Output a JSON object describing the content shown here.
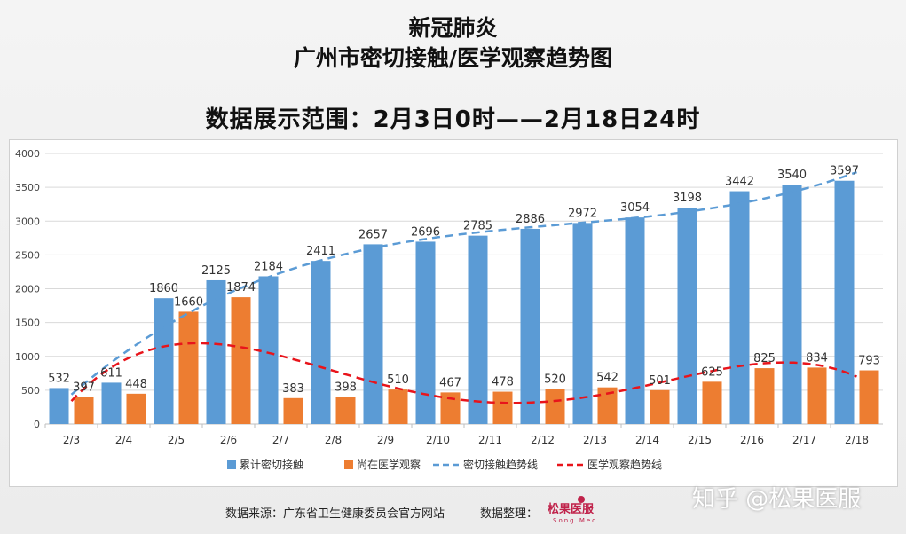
{
  "header": {
    "title_line1": "新冠肺炎",
    "title_line2": "广州市密切接触/医学观察趋势图",
    "subtitle": "数据展示范围：2月3日0时——2月18日24时"
  },
  "footer": {
    "source": "数据来源：广东省卫生健康委员会官方网站",
    "organizer": "数据整理：",
    "brand_name": "松果医服",
    "brand_sub": "Song Med",
    "watermark": "知乎 @松果医服"
  },
  "colors": {
    "contacts": "#5b9bd5",
    "observation": "#ed7d31",
    "contacts_trend": "#5b9bd5",
    "observation_trend": "#e8141b",
    "brand": "#c0234b"
  },
  "chart_data": {
    "type": "bar",
    "categories": [
      "2/3",
      "2/4",
      "2/5",
      "2/6",
      "2/7",
      "2/8",
      "2/9",
      "2/10",
      "2/11",
      "2/12",
      "2/13",
      "2/14",
      "2/15",
      "2/16",
      "2/17",
      "2/18"
    ],
    "series": [
      {
        "name": "累计密切接触",
        "values": [
          532,
          611,
          1860,
          2125,
          2184,
          2411,
          2657,
          2696,
          2785,
          2886,
          2972,
          3054,
          3198,
          3442,
          3540,
          3597
        ]
      },
      {
        "name": "尚在医学观察",
        "values": [
          397,
          448,
          1660,
          1874,
          383,
          398,
          510,
          467,
          478,
          520,
          542,
          501,
          625,
          825,
          834,
          793
        ]
      }
    ],
    "trendlines": [
      {
        "name": "密切接触趋势线",
        "series": "累计密切接触",
        "style": "dashed"
      },
      {
        "name": "医学观察趋势线",
        "series": "尚在医学观察",
        "style": "dashed"
      }
    ],
    "yticks": [
      0,
      500,
      1000,
      1500,
      2000,
      2500,
      3000,
      3500,
      4000
    ],
    "ylim": [
      0,
      4000
    ],
    "grid": true,
    "legend": "bottom"
  }
}
